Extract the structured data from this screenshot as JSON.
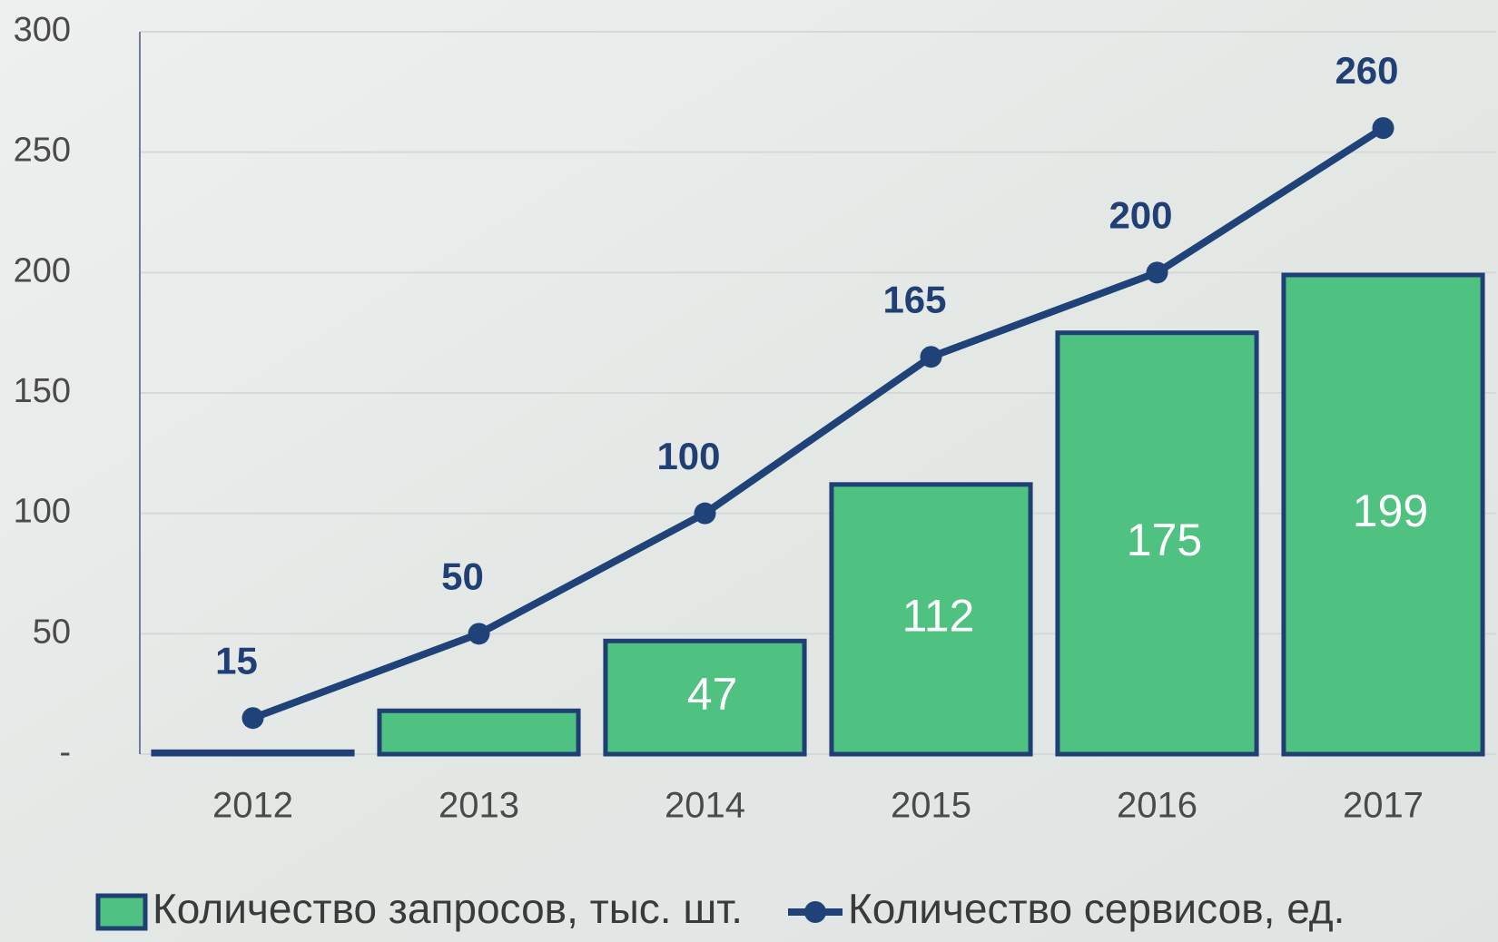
{
  "chart_data": {
    "type": "combo",
    "categories": [
      "2012",
      "2013",
      "2014",
      "2015",
      "2016",
      "2017"
    ],
    "series": [
      {
        "name": "Количество запросов, тыс. шт.",
        "type": "bar",
        "color": "#4fc180",
        "values": [
          1,
          18,
          47,
          112,
          175,
          199
        ]
      },
      {
        "name": "Количество сервисов, ед.",
        "type": "line",
        "color": "#1f4379",
        "values": [
          15,
          50,
          100,
          165,
          200,
          260
        ]
      }
    ],
    "ylim": [
      0,
      300
    ],
    "yticks": [
      {
        "value": 0,
        "label": "-"
      },
      50,
      100,
      150,
      200,
      250,
      300
    ],
    "grid": true
  }
}
